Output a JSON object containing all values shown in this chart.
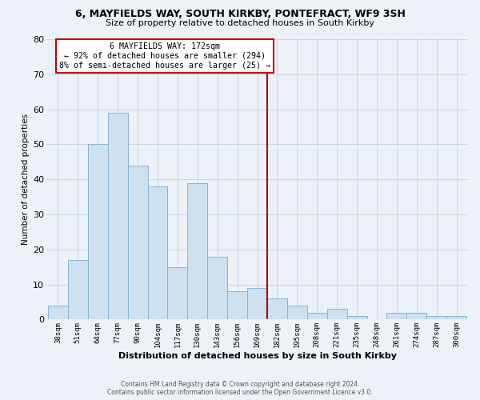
{
  "title_line1": "6, MAYFIELDS WAY, SOUTH KIRKBY, PONTEFRACT, WF9 3SH",
  "title_line2": "Size of property relative to detached houses in South Kirkby",
  "xlabel": "Distribution of detached houses by size in South Kirkby",
  "ylabel": "Number of detached properties",
  "categories": [
    "38sqm",
    "51sqm",
    "64sqm",
    "77sqm",
    "90sqm",
    "104sqm",
    "117sqm",
    "130sqm",
    "143sqm",
    "156sqm",
    "169sqm",
    "182sqm",
    "195sqm",
    "208sqm",
    "221sqm",
    "235sqm",
    "248sqm",
    "261sqm",
    "274sqm",
    "287sqm",
    "300sqm"
  ],
  "bar_values": [
    4,
    17,
    50,
    59,
    44,
    38,
    15,
    39,
    18,
    8,
    9,
    6,
    4,
    2,
    3,
    1,
    0,
    2,
    2,
    1,
    1
  ],
  "bar_color": "#cde0ef",
  "bar_edge_color": "#89b4d0",
  "vline_color": "#aa0000",
  "annotation_text": "6 MAYFIELDS WAY: 172sqm\n← 92% of detached houses are smaller (294)\n8% of semi-detached houses are larger (25) →",
  "annotation_box_color": "#cc0000",
  "background_color": "#edf2f8",
  "grid_color": "#d8e4f0",
  "ylim": [
    0,
    80
  ],
  "yticks": [
    0,
    10,
    20,
    30,
    40,
    50,
    60,
    70,
    80
  ],
  "footer_line1": "Contains HM Land Registry data © Crown copyright and database right 2024.",
  "footer_line2": "Contains public sector information licensed under the Open Government Licence v3.0."
}
